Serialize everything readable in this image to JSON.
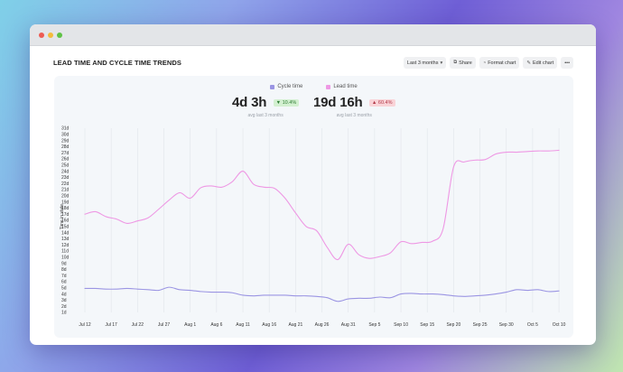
{
  "window": {
    "title": "LEAD TIME AND CYCLE TIME TRENDS"
  },
  "toolbar": {
    "range_label": "Last 3 months",
    "share_label": "Share",
    "format_label": "Format chart",
    "edit_label": "Edit chart",
    "more_label": "•••"
  },
  "stats": {
    "cycle": {
      "value": "4d 3h",
      "change": "▼ 10.4%",
      "sub": "avg last 3 months"
    },
    "lead": {
      "value": "19d 16h",
      "change": "▲ 60.4%",
      "sub": "avg last 3 months"
    }
  },
  "chart_data": {
    "type": "line",
    "ylabel": "Time in state",
    "ylim": [
      1,
      31
    ],
    "y_ticks": [
      "1d",
      "2d",
      "3d",
      "4d",
      "5d",
      "6d",
      "7d",
      "8d",
      "9d",
      "10d",
      "11d",
      "12d",
      "13d",
      "14d",
      "15d",
      "16d",
      "17d",
      "18d",
      "19d",
      "20d",
      "21d",
      "22d",
      "23d",
      "24d",
      "25d",
      "26d",
      "27d",
      "28d",
      "29d",
      "30d",
      "31d"
    ],
    "x_ticks": [
      "Jul 12",
      "Jul 17",
      "Jul 22",
      "Jul 27",
      "Aug 1",
      "Aug 6",
      "Aug 11",
      "Aug 16",
      "Aug 21",
      "Aug 26",
      "Aug 31",
      "Sep 5",
      "Sep 10",
      "Sep 15",
      "Sep 20",
      "Sep 25",
      "Sep 30",
      "Oct 5",
      "Oct 10"
    ],
    "x_range": [
      0,
      90.5
    ],
    "series": [
      {
        "name": "Cycle time",
        "color": "#9b95e3",
        "x": [
          0,
          2,
          4,
          6,
          8,
          10,
          12,
          14,
          16,
          18,
          20,
          22,
          24,
          26,
          28,
          30,
          32,
          34,
          36,
          38,
          40,
          42,
          44,
          46,
          48,
          50,
          52,
          54,
          56,
          58,
          60,
          62,
          64,
          66,
          68,
          70,
          72,
          74,
          76,
          78,
          80,
          82,
          84,
          86,
          88,
          90
        ],
        "y": [
          4.9,
          4.9,
          4.8,
          4.8,
          4.9,
          4.8,
          4.7,
          4.6,
          5.1,
          4.7,
          4.6,
          4.4,
          4.3,
          4.3,
          4.2,
          3.8,
          3.7,
          3.8,
          3.8,
          3.8,
          3.7,
          3.7,
          3.6,
          3.4,
          2.8,
          3.2,
          3.3,
          3.3,
          3.5,
          3.4,
          4.0,
          4.1,
          4.0,
          4.0,
          3.9,
          3.7,
          3.6,
          3.7,
          3.8,
          4.0,
          4.3,
          4.7,
          4.6,
          4.7,
          4.4,
          4.5
        ]
      },
      {
        "name": "Lead time",
        "color": "#ee98e4",
        "x": [
          0,
          2,
          4,
          6,
          8,
          10,
          12,
          14,
          16,
          18,
          20,
          22,
          24,
          26,
          28,
          30,
          32,
          34,
          36,
          38,
          40,
          42,
          44,
          46,
          48,
          50,
          52,
          54,
          56,
          58,
          60,
          62,
          64,
          66,
          68,
          70,
          72,
          74,
          76,
          78,
          80,
          82,
          84,
          86,
          88,
          90
        ],
        "y": [
          17,
          17.4,
          16.6,
          16.2,
          15.5,
          15.9,
          16.4,
          17.8,
          19.3,
          20.5,
          19.6,
          21.3,
          21.6,
          21.4,
          22.3,
          24,
          21.9,
          21.4,
          21.2,
          19.6,
          17.2,
          15,
          14.3,
          11.6,
          9.6,
          12.1,
          10.4,
          9.8,
          10.1,
          10.7,
          12.5,
          12.2,
          12.4,
          12.6,
          14.6,
          24.7,
          25.5,
          25.8,
          25.9,
          26.8,
          27.1,
          27.1,
          27.2,
          27.3,
          27.3,
          27.4
        ]
      }
    ],
    "legend_position": "top-center",
    "grid": {
      "vertical": true,
      "horizontal": false
    }
  },
  "colors": {
    "cycle": "#9b95e3",
    "lead": "#ee98e4",
    "panel_bg": "#f4f7fa"
  },
  "icons": {
    "range": "chevron-down-icon",
    "share": "share-icon",
    "format": "palette-icon",
    "edit": "edit-icon",
    "more": "more-icon"
  }
}
